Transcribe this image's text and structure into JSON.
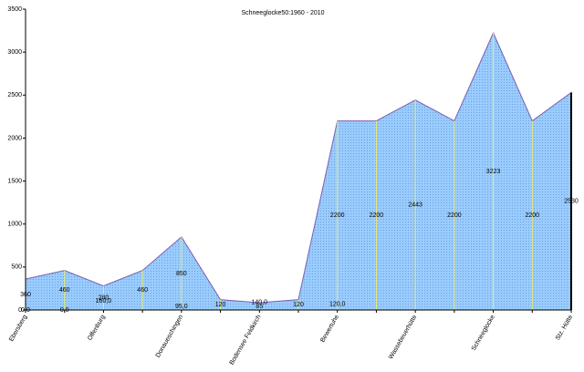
{
  "chart_data": {
    "type": "area",
    "title": "Schneeglocke50:1960 - 2010",
    "categories": [
      "Ebersberg",
      null,
      "Offenburg",
      null,
      "Donaueschingen",
      null,
      "Bodensee Feldkirch",
      null,
      "Bewertuhe",
      null,
      "Wassebeuerhütte",
      null,
      "Schneeglocke",
      null,
      "Stz. Hütte"
    ],
    "series": [
      {
        "name": null,
        "color": "#99ccff",
        "values": [
          360,
          460,
          280,
          460,
          850,
          120,
          85,
          120,
          2200,
          2200,
          2443,
          2200,
          3223,
          2200,
          2530
        ]
      },
      {
        "values": [
          0,
          0,
          160,
          null,
          95,
          null,
          140,
          null,
          120,
          null,
          null,
          null,
          null,
          null,
          null
        ],
        "value_labels": [
          "0,0",
          "0,0",
          "160,0",
          null,
          "95,0",
          null,
          "140,0",
          null,
          "120,0",
          null,
          null,
          null,
          null,
          null,
          null
        ]
      }
    ],
    "ylim": [
      0,
      3500
    ],
    "yticks": [
      0,
      500,
      1000,
      1500,
      2000,
      2500,
      3000,
      3500
    ],
    "drop_lines": true
  }
}
